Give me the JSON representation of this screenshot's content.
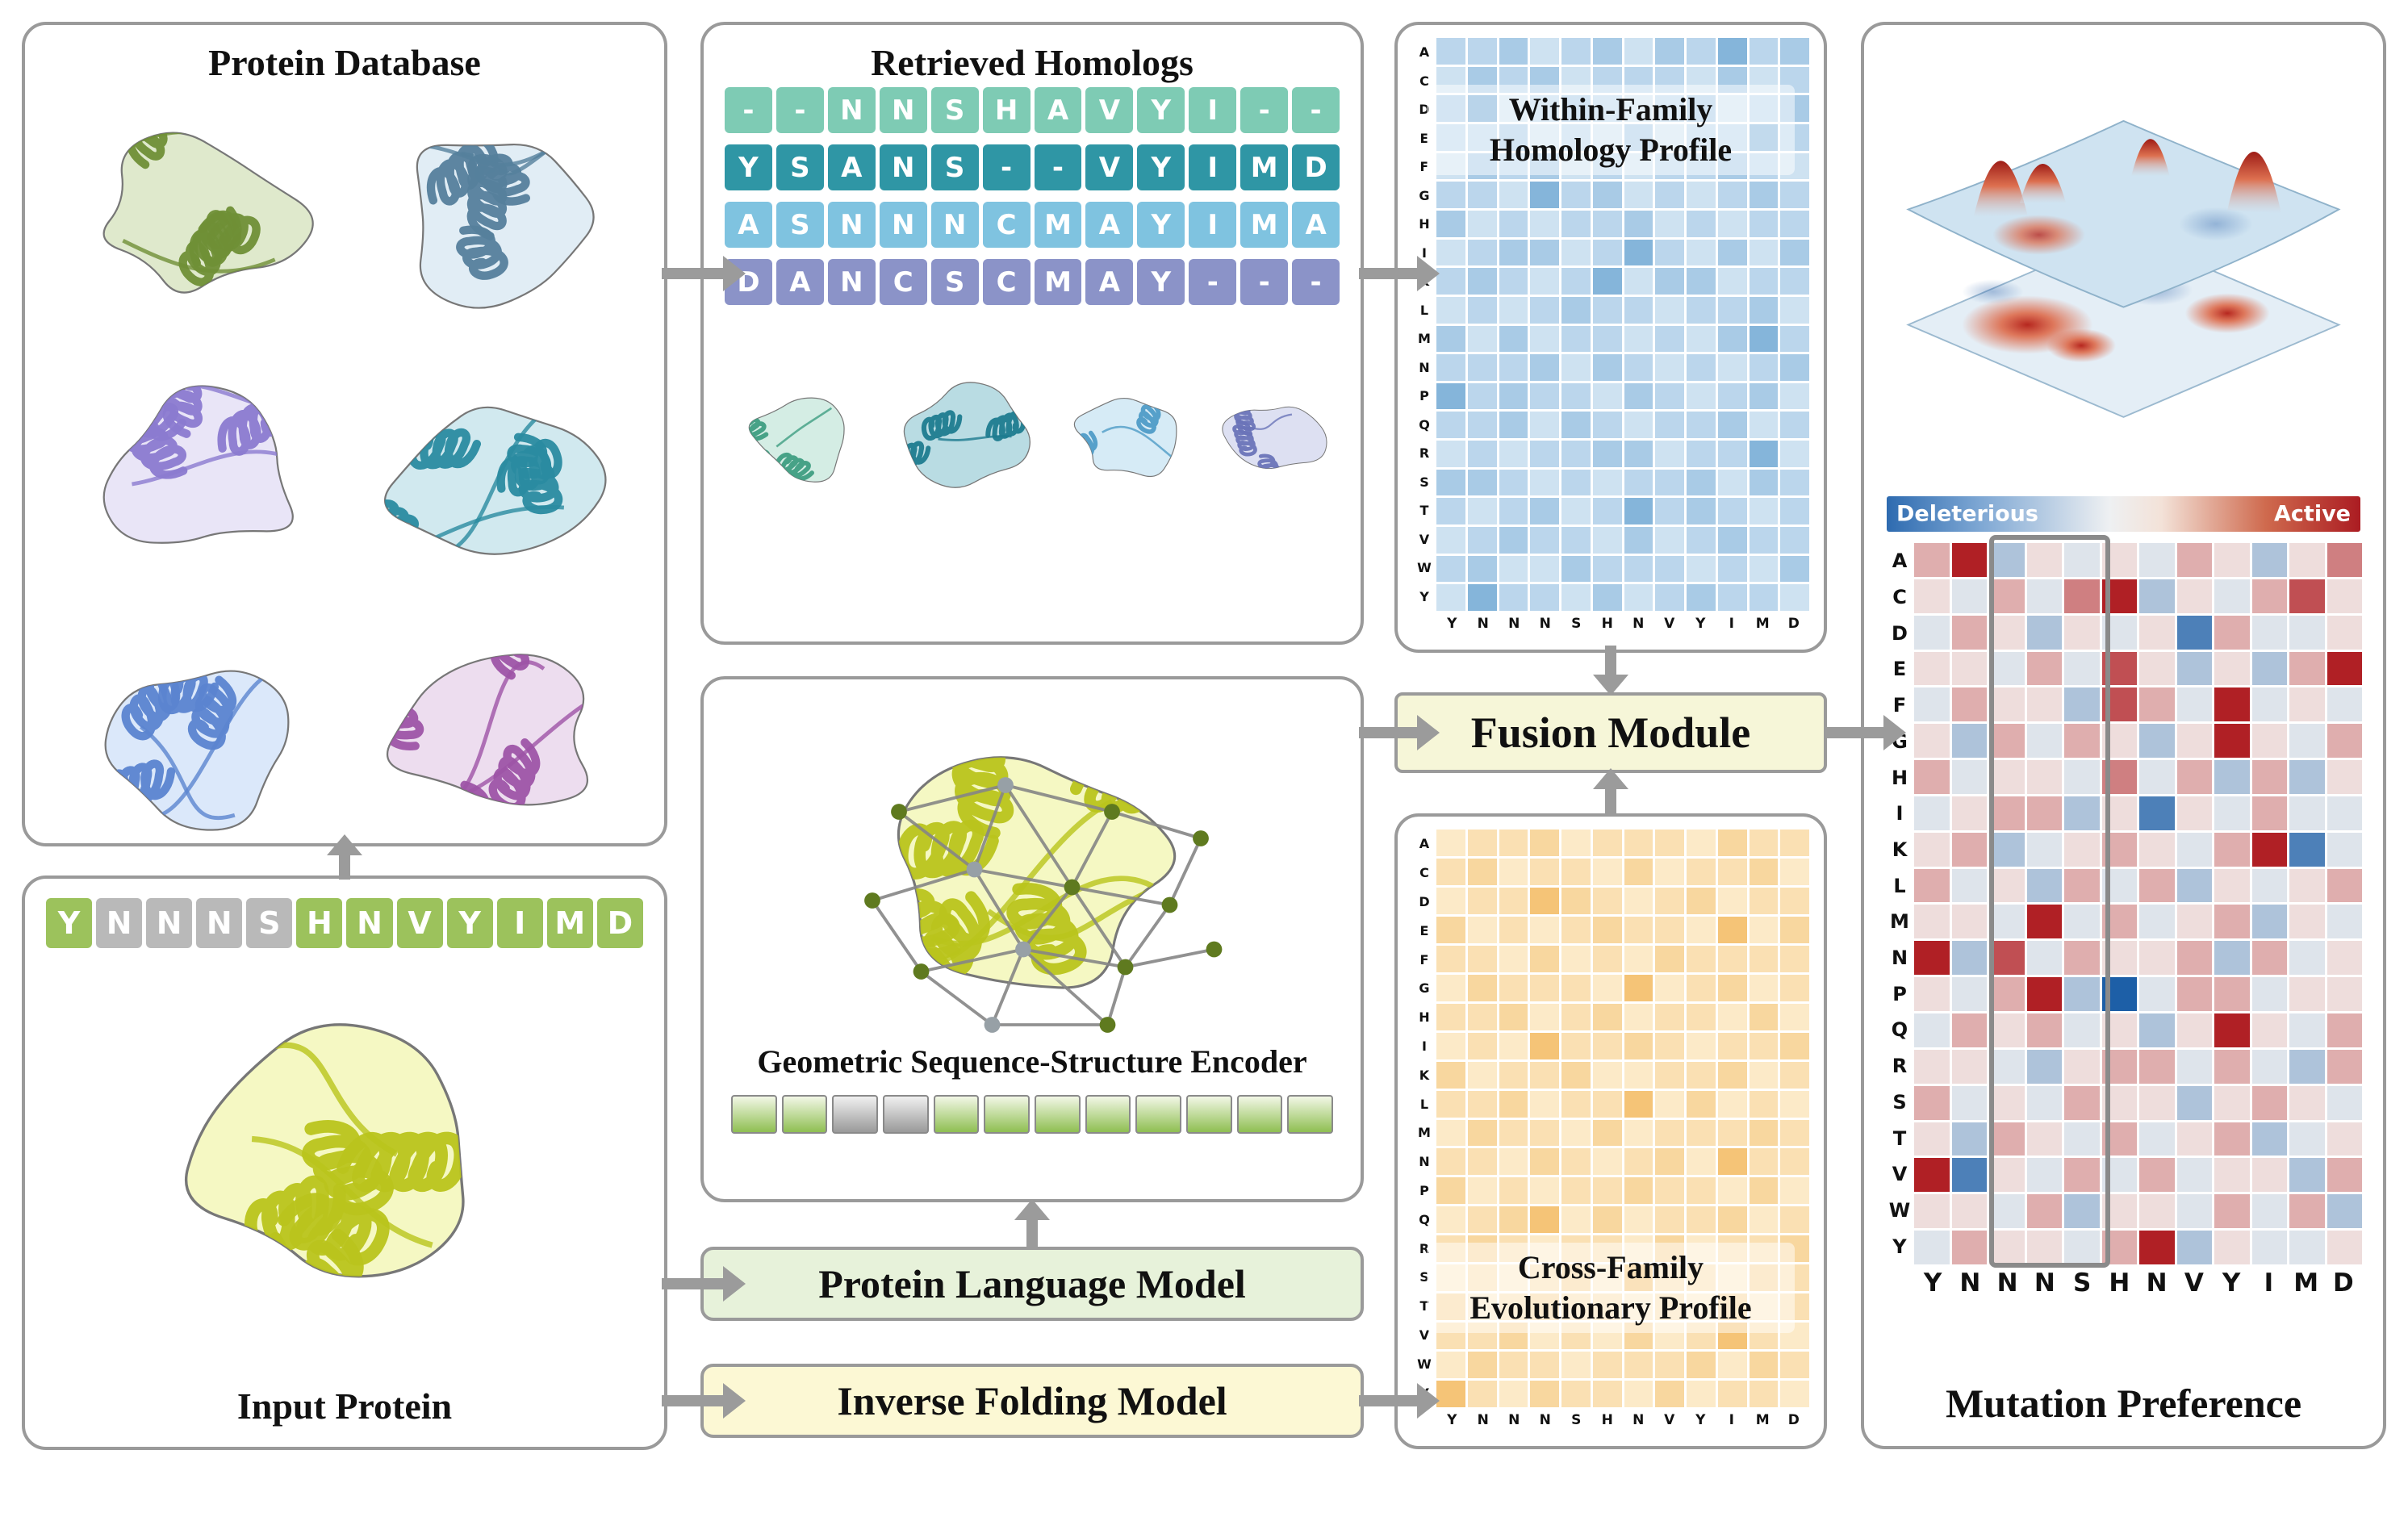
{
  "protein_database": {
    "title": "Protein Database"
  },
  "input_protein": {
    "title": "Input Protein",
    "sequence": [
      "Y",
      "N",
      "N",
      "N",
      "S",
      "H",
      "N",
      "V",
      "Y",
      "I",
      "M",
      "D"
    ],
    "masked_indices": [
      1,
      2,
      3,
      4
    ],
    "green": "#9cc25c",
    "gray": "#b9b9b9"
  },
  "retrieved_homologs": {
    "title": "Retrieved Homologs",
    "rows": [
      {
        "color": "#7ecbb4",
        "cells": [
          "-",
          "-",
          "N",
          "N",
          "S",
          "H",
          "A",
          "V",
          "Y",
          "I",
          "-",
          "-"
        ]
      },
      {
        "color": "#2f96a5",
        "cells": [
          "Y",
          "S",
          "A",
          "N",
          "S",
          "-",
          "-",
          "V",
          "Y",
          "I",
          "M",
          "D"
        ]
      },
      {
        "color": "#7fc3e0",
        "cells": [
          "A",
          "S",
          "N",
          "N",
          "N",
          "C",
          "M",
          "A",
          "Y",
          "I",
          "M",
          "A"
        ]
      },
      {
        "color": "#8b93c8",
        "cells": [
          "D",
          "A",
          "N",
          "C",
          "S",
          "C",
          "M",
          "A",
          "Y",
          "-",
          "-",
          "-"
        ]
      }
    ]
  },
  "encoder": {
    "title": "Geometric Sequence-Structure Encoder",
    "embedding": [
      "g",
      "g",
      "x",
      "x",
      "g",
      "g",
      "g",
      "g",
      "g",
      "g",
      "g",
      "g"
    ]
  },
  "plm": {
    "label": "Protein Language Model"
  },
  "ifm": {
    "label": "Inverse Folding Model"
  },
  "fusion": {
    "label": "Fusion Module"
  },
  "amino_acids": [
    "A",
    "C",
    "D",
    "E",
    "F",
    "G",
    "H",
    "I",
    "K",
    "L",
    "M",
    "N",
    "P",
    "Q",
    "R",
    "S",
    "T",
    "V",
    "W",
    "Y"
  ],
  "profile_columns": [
    "Y",
    "N",
    "N",
    "N",
    "S",
    "H",
    "N",
    "V",
    "Y",
    "I",
    "M",
    "D"
  ],
  "within_family": {
    "title_line1": "Within-Family",
    "title_line2": "Homology Profile",
    "rows": [
      "334234243634",
      "243423332423",
      "472343234234",
      "334232423363",
      "243423233432",
      "332634232343",
      "423233423233",
      "234423632424",
      "343236244233",
      "232343323342",
      "424233232463",
      "333424323234",
      "634332432342",
      "334243233423",
      "232334423362",
      "443232334243",
      "323423634323",
      "234332423433",
      "342243332324",
      "263324234332"
    ]
  },
  "cross_family": {
    "title_line1": "Cross-Family",
    "title_line2": "Evolutionary Profile",
    "rows": [
      "233423332433",
      "342332423342",
      "233643234233",
      "423234332624",
      "332423243333",
      "243332623423",
      "334234233242",
      "232633432334",
      "423342233423",
      "334233624232",
      "243324233343",
      "332432342633",
      "423233433242",
      "234624233423",
      "343233242334",
      "232342633243",
      "423433232423",
      "334232423632",
      "243323334243",
      "632433242332"
    ]
  },
  "mutation": {
    "title": "Mutation Preference",
    "colorbar": {
      "left": "Deleterious",
      "right": "Active"
    },
    "rows": [
      "693545465357",
      "546479354685",
      "465354516445",
      "554648535369",
      "465538649454",
      "536465359546",
      "645547463635",
      "456635154644",
      "563456546914",
      "645364635456",
      "554946456354",
      "938465563645",
      "546930466455",
      "465645359546",
      "554356646436",
      "645465535654",
      "536546456345",
      "915464645536",
      "554635546463",
      "465546935445"
    ],
    "highlight_col_start": 2,
    "highlight_col_span": 3
  }
}
